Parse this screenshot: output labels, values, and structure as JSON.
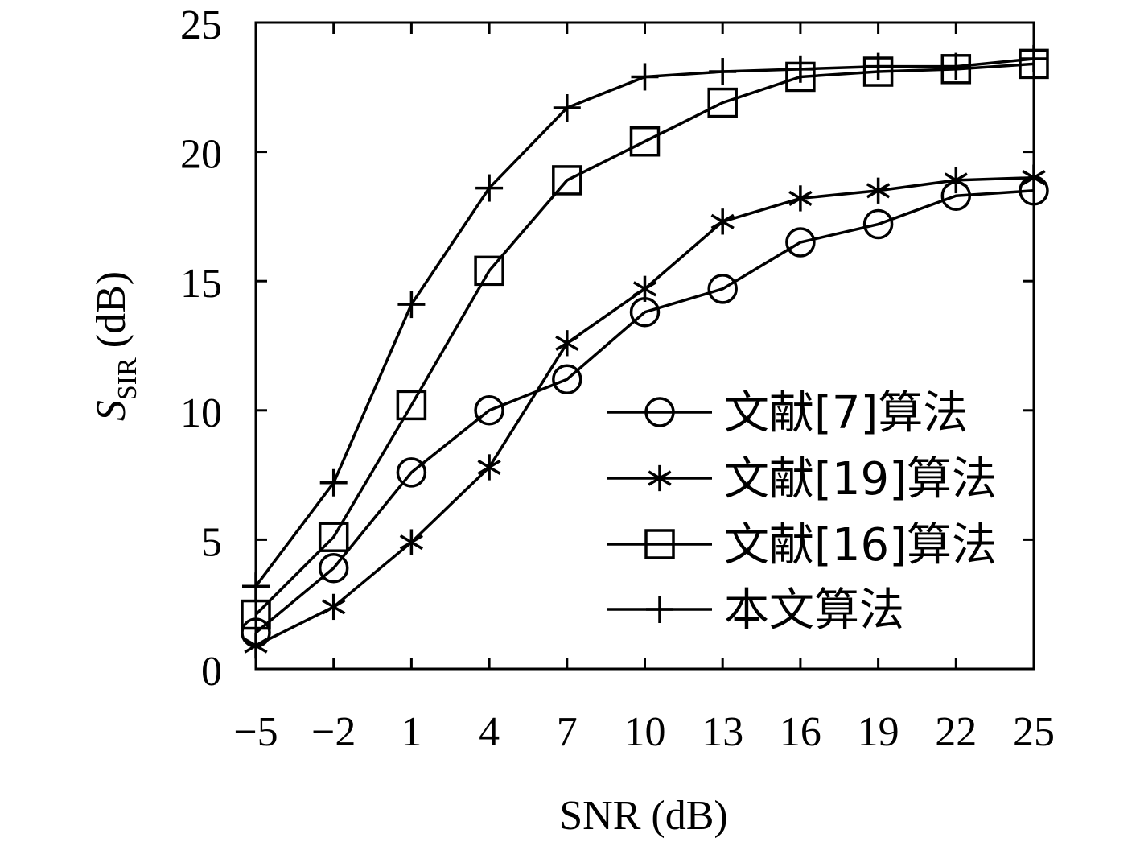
{
  "chart_data": {
    "type": "line",
    "xlabel": "SNR (dB)",
    "ylabel": {
      "main": "S",
      "sub": "SIR",
      "unit": "(dB)"
    },
    "x": [
      -5,
      -2,
      1,
      4,
      7,
      10,
      13,
      16,
      19,
      22,
      25
    ],
    "x_tick_labels": [
      "−5",
      "−2",
      "1",
      "4",
      "7",
      "10",
      "13",
      "16",
      "19",
      "22",
      "25"
    ],
    "y_ticks": [
      0,
      5,
      10,
      15,
      20,
      25
    ],
    "y_tick_labels": [
      "0",
      "5",
      "10",
      "15",
      "20",
      "25"
    ],
    "xlim": [
      -5,
      25
    ],
    "ylim": [
      0,
      25
    ],
    "grid": false,
    "legend_position": "lower-right",
    "series": [
      {
        "name": "文献[7]算法",
        "marker": "circle",
        "values": [
          1.4,
          3.9,
          7.6,
          10.0,
          11.2,
          13.8,
          14.7,
          16.5,
          17.2,
          18.3,
          18.5
        ]
      },
      {
        "name": "文献[19]算法",
        "marker": "asterisk",
        "values": [
          0.9,
          2.4,
          4.9,
          7.8,
          12.6,
          14.7,
          17.3,
          18.2,
          18.5,
          18.9,
          19.0
        ]
      },
      {
        "name": "文献[16]算法",
        "marker": "square",
        "values": [
          2.1,
          5.1,
          10.2,
          15.4,
          18.9,
          20.4,
          21.9,
          22.9,
          23.1,
          23.2,
          23.4
        ]
      },
      {
        "name": "本文算法",
        "marker": "plus",
        "values": [
          3.2,
          7.2,
          14.1,
          18.6,
          21.7,
          22.9,
          23.1,
          23.2,
          23.3,
          23.3,
          23.6
        ]
      }
    ]
  }
}
